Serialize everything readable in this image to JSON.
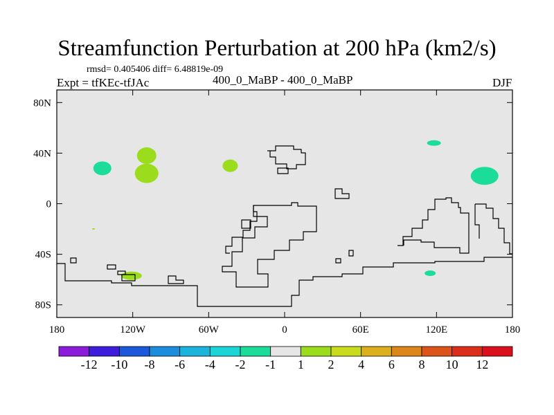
{
  "chart_data": {
    "type": "heatmap",
    "title": "Streamfunction Perturbation at 200 hPa (km2/s)",
    "stats_line": "rmsd= 0.405406 diff= 6.48819e-09",
    "left_string": "Expt = tfKEc-tfJAc",
    "center_string": "400_0_MaBP - 400_0_MaBP",
    "right_string": "DJF",
    "x_ticks": [
      "180",
      "120W",
      "60W",
      "0",
      "60E",
      "120E",
      "180"
    ],
    "y_ticks": [
      "80N",
      "40N",
      "0",
      "40S",
      "80S"
    ],
    "x_range": [
      -180,
      180
    ],
    "y_range": [
      -90,
      90
    ],
    "colorbar": {
      "labels": [
        "-12",
        "-10",
        "-8",
        "-6",
        "-4",
        "-2",
        "-1",
        "1",
        "2",
        "4",
        "6",
        "8",
        "10",
        "12"
      ],
      "colors": [
        "#8c1cdc",
        "#3e1cdc",
        "#1c58dc",
        "#1c8ddc",
        "#1cb4dc",
        "#1cd6d6",
        "#1cdc9a",
        "#e6e6e6",
        "#9bdc1c",
        "#c8dc1c",
        "#dcb01c",
        "#dc861c",
        "#dc541c",
        "#dc2e1c",
        "#dc101c"
      ]
    },
    "field_color": "#e6e6e6",
    "features": [
      {
        "sign": "negative",
        "color": "#1cdc9a",
        "lon": -144,
        "lat": 28
      },
      {
        "sign": "positive",
        "color": "#9bdc1c",
        "lon": -109,
        "lat": 38
      },
      {
        "sign": "positive",
        "color": "#9bdc1c",
        "lon": -109,
        "lat": 24
      },
      {
        "sign": "positive",
        "color": "#9bdc1c",
        "lon": -43,
        "lat": 30
      },
      {
        "sign": "negative",
        "color": "#1cdc9a",
        "lon": 118,
        "lat": 48
      },
      {
        "sign": "negative",
        "color": "#1cdc9a",
        "lon": 158,
        "lat": 22
      },
      {
        "sign": "positive",
        "color": "#9bdc1c",
        "lon": -121,
        "lat": -57
      },
      {
        "sign": "negative",
        "color": "#1cdc9a",
        "lon": 115,
        "lat": -55
      },
      {
        "sign": "positive",
        "color": "#9bdc1c",
        "lon": -151,
        "lat": -20
      }
    ]
  }
}
